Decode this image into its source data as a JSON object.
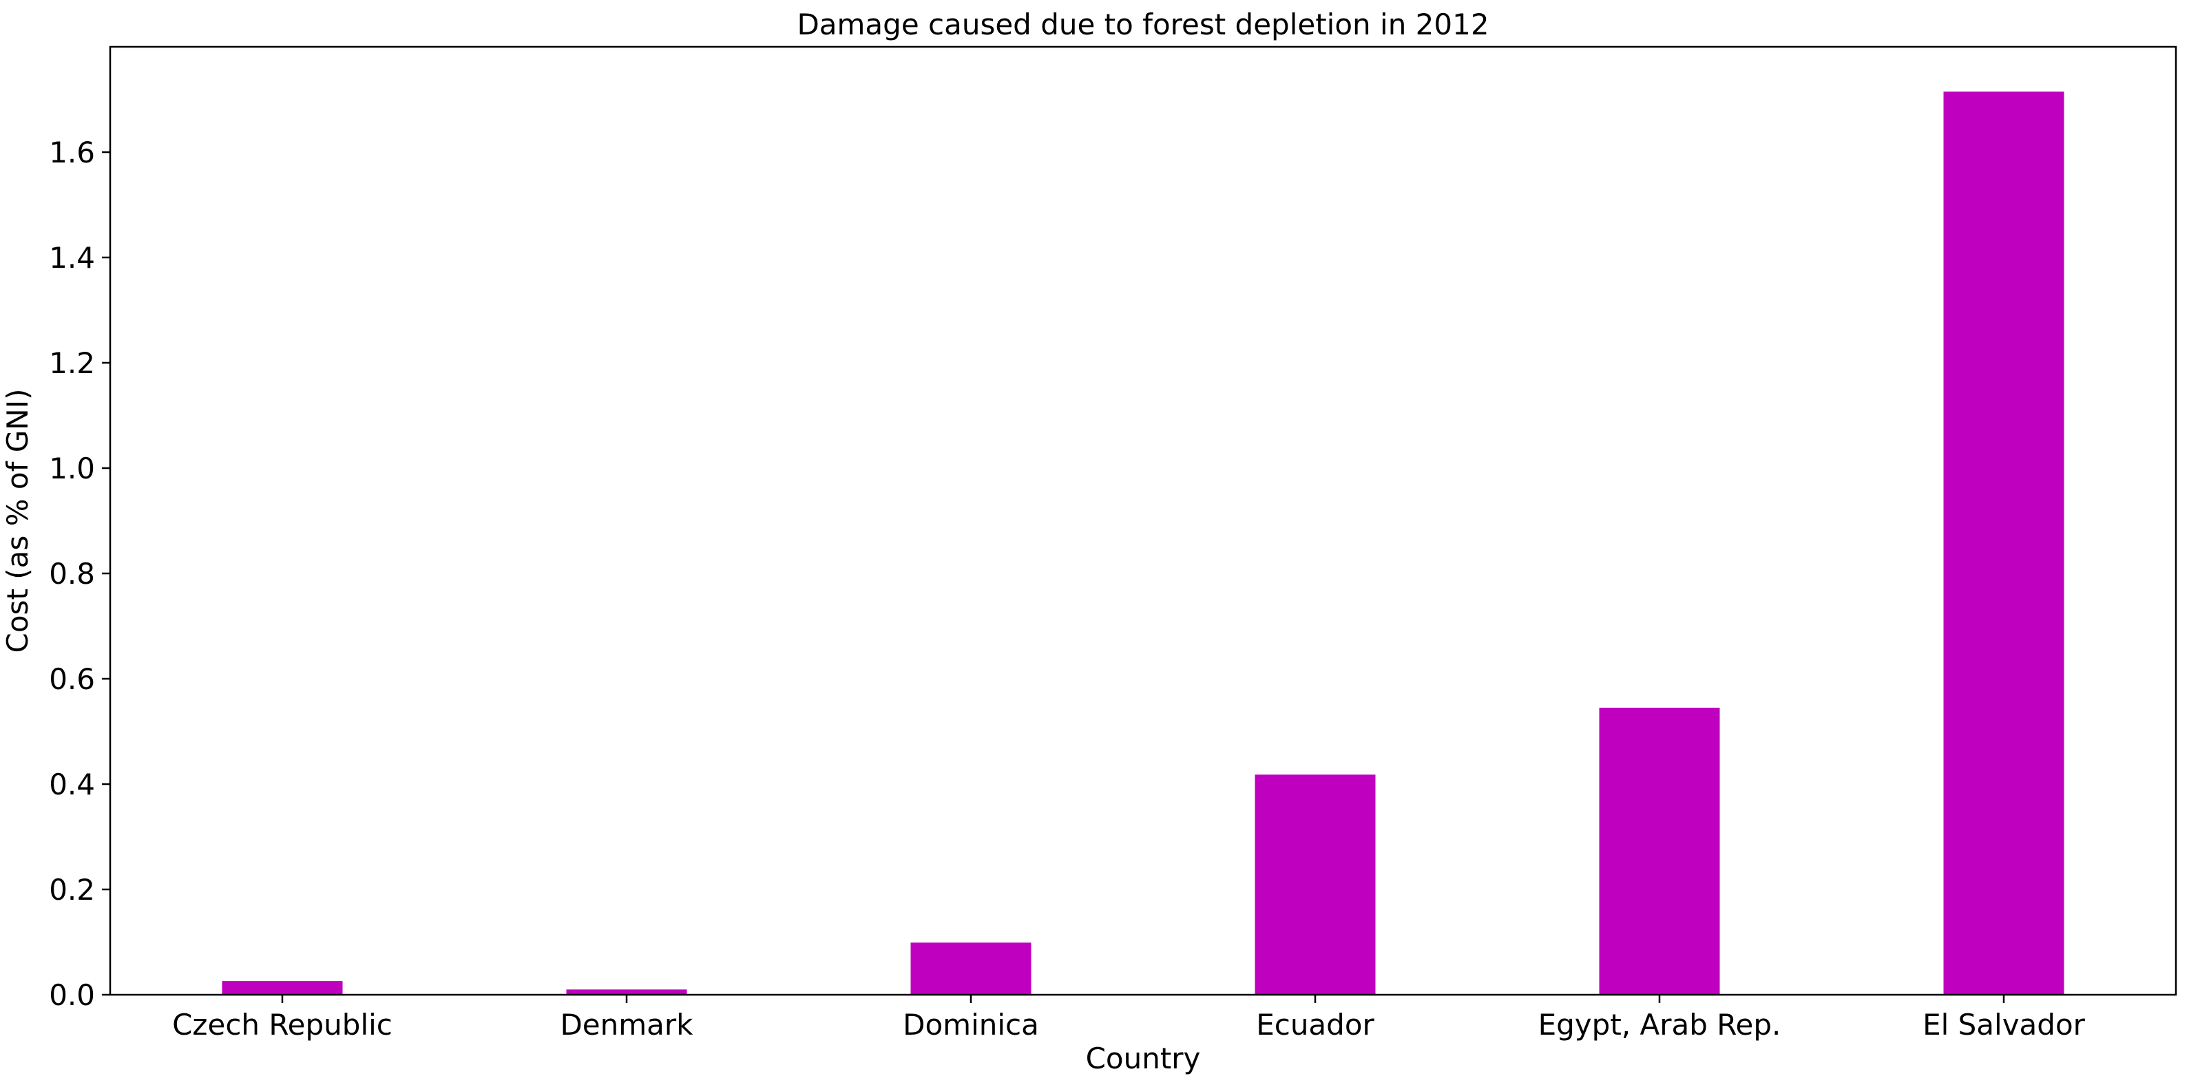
{
  "chart_data": {
    "type": "bar",
    "title": "Damage caused due to forest depletion in 2012",
    "xlabel": "Country",
    "ylabel": "Cost (as % of GNI)",
    "categories": [
      "Czech Republic",
      "Denmark",
      "Dominica",
      "Ecuador",
      "Egypt, Arab Rep.",
      "El Salvador"
    ],
    "values": [
      0.026,
      0.01,
      0.099,
      0.418,
      0.545,
      1.715
    ],
    "ylim": [
      0,
      1.8
    ],
    "yticks": [
      0.0,
      0.2,
      0.4,
      0.6,
      0.8,
      1.0,
      1.2,
      1.4,
      1.6
    ],
    "ytick_labels": [
      "0.0",
      "0.2",
      "0.4",
      "0.6",
      "0.8",
      "1.0",
      "1.2",
      "1.4",
      "1.6"
    ],
    "bar_color": "#bf00bf",
    "grid": false,
    "legend": "none"
  }
}
